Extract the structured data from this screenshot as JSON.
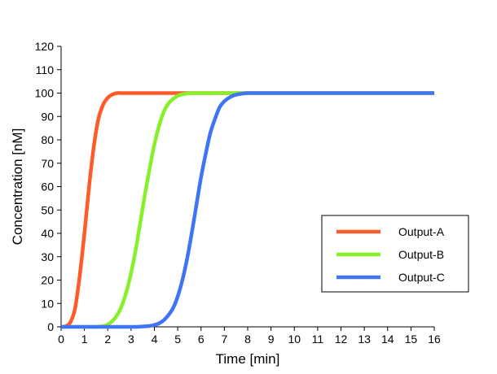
{
  "chart_data": {
    "type": "line",
    "title": "",
    "xlabel": "Time [min]",
    "ylabel": "Concentration [nM]",
    "xlim": [
      0,
      16
    ],
    "ylim": [
      0,
      120
    ],
    "x_ticks": [
      0,
      1,
      2,
      3,
      4,
      5,
      6,
      7,
      8,
      9,
      10,
      11,
      12,
      13,
      14,
      15,
      16
    ],
    "y_ticks": [
      0,
      10,
      20,
      30,
      40,
      50,
      60,
      70,
      80,
      90,
      100,
      110,
      120
    ],
    "grid": false,
    "legend_position": "right-middle",
    "x": [
      0.0,
      0.2,
      0.4,
      0.6,
      0.8,
      1.0,
      1.2,
      1.4,
      1.6,
      1.8,
      2.0,
      2.2,
      2.4,
      2.6,
      2.8,
      3.0,
      3.2,
      3.4,
      3.6,
      3.8,
      4.0,
      4.2,
      4.4,
      4.6,
      4.8,
      5.0,
      5.2,
      5.4,
      5.6,
      5.8,
      6.0,
      6.2,
      6.4,
      6.6,
      6.8,
      7.0,
      7.2,
      7.4,
      7.6,
      7.8,
      8.0,
      8.2,
      8.4,
      8.6,
      8.8,
      9.0,
      9.5,
      10,
      11,
      12,
      13,
      14,
      15,
      16
    ],
    "series": [
      {
        "name": "Output-A",
        "color": "#ff5a2a",
        "values": [
          0,
          0.3,
          2,
          8,
          22,
          40,
          60,
          77,
          89,
          95,
          98,
          99.4,
          100,
          100,
          100,
          100,
          100,
          100,
          100,
          100,
          100,
          100,
          100,
          100,
          100,
          100,
          100,
          100,
          100,
          100,
          100,
          100,
          100,
          100,
          100,
          100,
          100,
          100,
          100,
          100,
          100,
          100,
          100,
          100,
          100,
          100,
          100,
          100,
          100,
          100,
          100,
          100,
          100,
          100
        ]
      },
      {
        "name": "Output-B",
        "color": "#88f02a",
        "values": [
          0,
          0,
          0,
          0,
          0,
          0,
          0,
          0,
          0.1,
          0.3,
          1,
          2.5,
          5,
          9,
          15,
          23,
          33,
          45,
          57,
          68,
          78,
          86,
          92,
          95.5,
          97.5,
          98.8,
          99.5,
          99.8,
          100,
          100,
          100,
          100,
          100,
          100,
          100,
          100,
          100,
          100,
          100,
          100,
          100,
          100,
          100,
          100,
          100,
          100,
          100,
          100,
          100,
          100,
          100,
          100,
          100,
          100
        ]
      },
      {
        "name": "Output-C",
        "color": "#3f74f5",
        "values": [
          0,
          0,
          0,
          0,
          0,
          0,
          0,
          0,
          0,
          0,
          0,
          0,
          0,
          0,
          0,
          0,
          0,
          0.1,
          0.2,
          0.4,
          0.8,
          1.5,
          2.8,
          5,
          8,
          13,
          20,
          29,
          40,
          52,
          64,
          74,
          83,
          89,
          94,
          96.5,
          98,
          99,
          99.5,
          99.8,
          100,
          100,
          100,
          100,
          100,
          100,
          100,
          100,
          100,
          100,
          100,
          100,
          100,
          100
        ]
      }
    ]
  }
}
